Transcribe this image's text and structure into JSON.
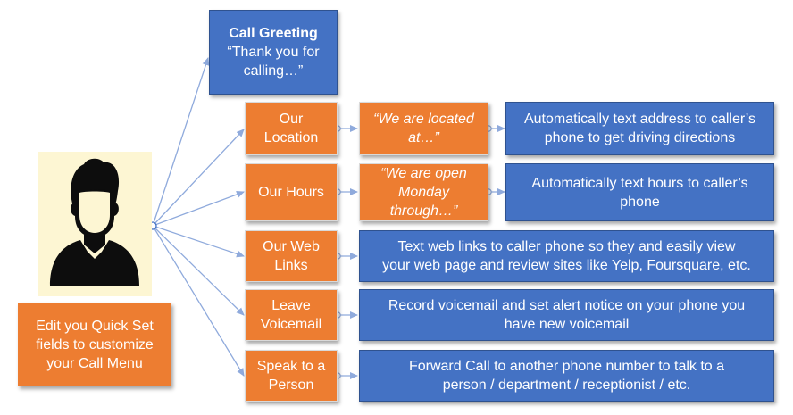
{
  "colors": {
    "orange": "#ed7d31",
    "blue": "#4472c4",
    "connector": "#8faadc",
    "avatar_bg": "#fdf6d3",
    "person_icon": "#0d0d0d"
  },
  "person_icon": "person-silhouette-icon",
  "caption": "Edit you Quick Set\nfields to customize\nyour Call Menu",
  "greeting": {
    "title": "Call Greeting",
    "quote": "“Thank you for\ncalling…”"
  },
  "menu": [
    {
      "label": "Our\nLocation",
      "quote": "“We are located\nat…”",
      "action": "Automatically text address to caller’s\nphone to get driving directions"
    },
    {
      "label": "Our Hours",
      "quote": "“We are open\nMonday\nthrough…”",
      "action": "Automatically text hours to caller’s\nphone"
    },
    {
      "label": "Our Web\nLinks",
      "action": "Text web links to caller phone so they and easily view\nyour web page and review sites like Yelp, Foursquare, etc."
    },
    {
      "label": "Leave\nVoicemail",
      "action": "Record voicemail and set alert notice on your phone you\nhave new voicemail"
    },
    {
      "label": "Speak to a\nPerson",
      "action": "Forward Call to another phone number to talk to a\nperson / department / receptionist / etc."
    }
  ]
}
